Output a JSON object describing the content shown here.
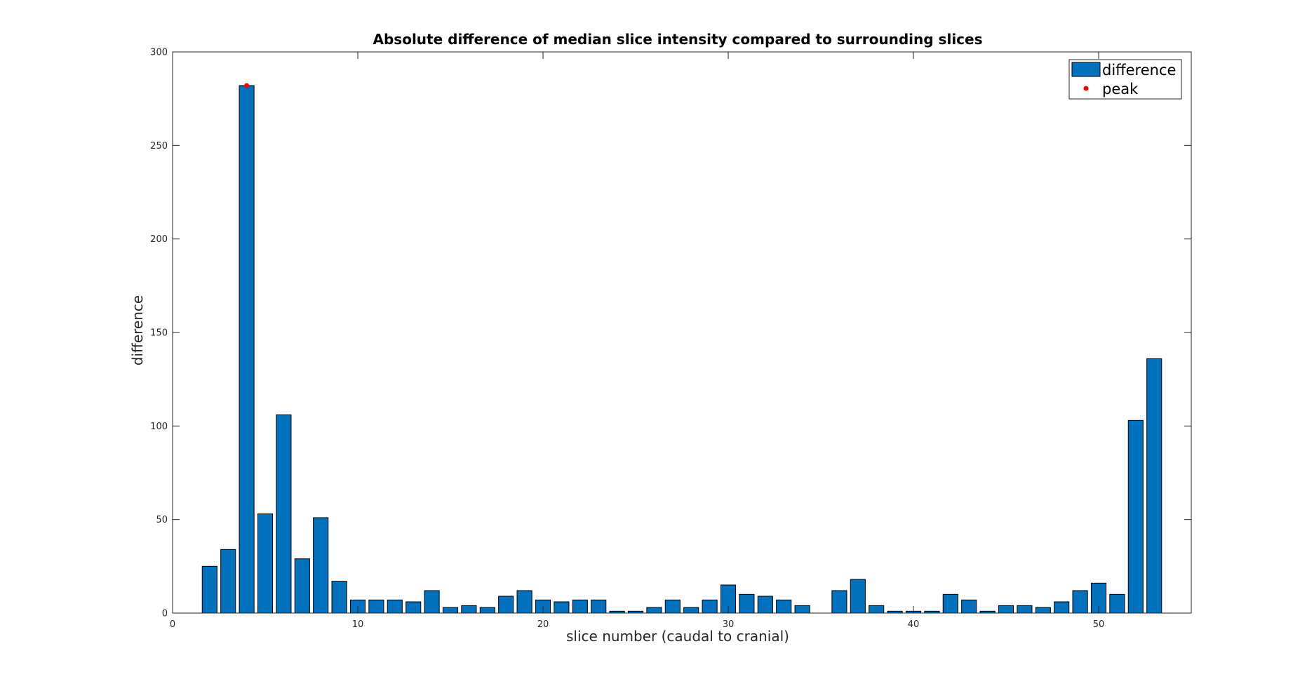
{
  "chart_data": {
    "type": "bar",
    "title": "Absolute difference of median slice intensity compared to surrounding slices",
    "xlabel": "slice number (caudal to cranial)",
    "ylabel": "difference",
    "xlim": [
      0,
      55
    ],
    "ylim": [
      0,
      300
    ],
    "xticks": [
      0,
      10,
      20,
      30,
      40,
      50
    ],
    "yticks": [
      0,
      50,
      100,
      150,
      200,
      250,
      300
    ],
    "grid": false,
    "legend_position": "top-right",
    "series": [
      {
        "name": "difference",
        "color": "#0072BD",
        "edge_color": "#000000",
        "x": [
          2,
          3,
          4,
          5,
          6,
          7,
          8,
          9,
          10,
          11,
          12,
          13,
          14,
          15,
          16,
          17,
          18,
          19,
          20,
          21,
          22,
          23,
          24,
          25,
          26,
          27,
          28,
          29,
          30,
          31,
          32,
          33,
          34,
          35,
          36,
          37,
          38,
          39,
          40,
          41,
          42,
          43,
          44,
          45,
          46,
          47,
          48,
          49,
          50,
          51,
          52,
          53
        ],
        "values": [
          25,
          34,
          282,
          53,
          106,
          29,
          51,
          17,
          7,
          7,
          7,
          6,
          12,
          3,
          4,
          3,
          9,
          12,
          7,
          6,
          7,
          7,
          1,
          1,
          3,
          7,
          3,
          7,
          15,
          10,
          9,
          7,
          4,
          0,
          12,
          18,
          4,
          1,
          1,
          1,
          10,
          7,
          1,
          4,
          4,
          3,
          6,
          12,
          16,
          10,
          103,
          136
        ]
      },
      {
        "name": "peak",
        "type": "scatter",
        "color": "#FF0000",
        "x": [
          4
        ],
        "values": [
          282
        ]
      }
    ]
  }
}
